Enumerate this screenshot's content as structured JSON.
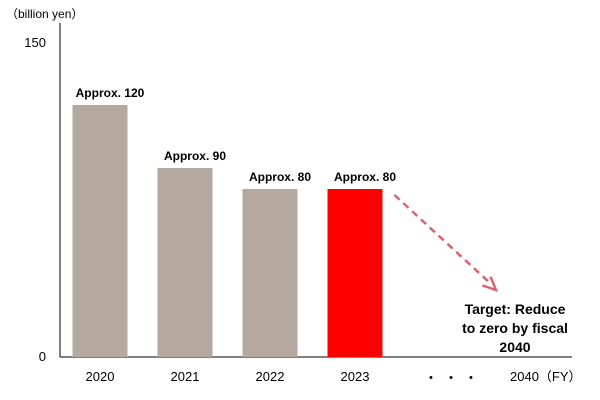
{
  "chart_data": {
    "type": "bar",
    "unit_label": "（billion yen）",
    "ylim": [
      0,
      150
    ],
    "y_ticks": [
      "150",
      "0"
    ],
    "categories": [
      "2020",
      "2021",
      "2022",
      "2023"
    ],
    "values": [
      120,
      90,
      80,
      80
    ],
    "data_labels": [
      "Approx. 120",
      "Approx. 90",
      "Approx. 80",
      "Approx. 80"
    ],
    "bar_colors": [
      "#b5a99f",
      "#b5a99f",
      "#b5a99f",
      "#ff0000"
    ],
    "ellipsis": "・・・",
    "target_category": "2040（FY）",
    "target_value": 0,
    "target_lines": [
      "Target: Reduce",
      "to zero by fiscal",
      "2040"
    ],
    "trend_arrow_color": "#e06070",
    "grid": false,
    "legend": "none"
  }
}
